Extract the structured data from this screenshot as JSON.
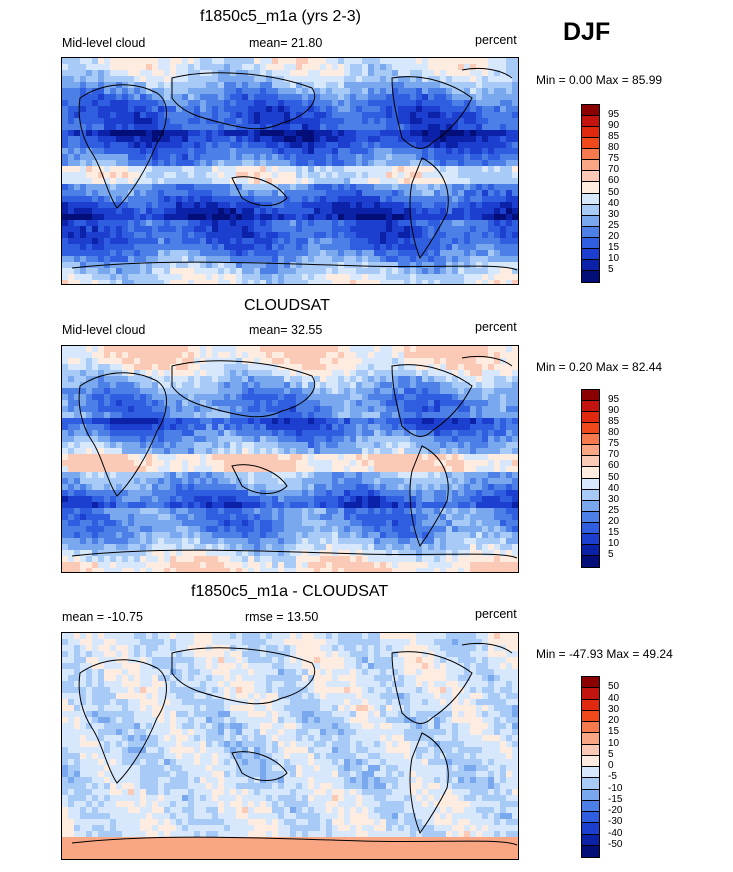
{
  "season": "DJF",
  "panels": [
    {
      "title": "f1850c5_m1a (yrs 2-3)",
      "left_label": "Mid-level cloud",
      "center_label": "mean=  21.80",
      "right_label": "percent",
      "minmax": "Min =   0.00 Max =  85.99",
      "kind": "abs"
    },
    {
      "title": "CLOUDSAT",
      "left_label": "Mid-level cloud",
      "center_label": "mean=  32.55",
      "right_label": "percent",
      "minmax": "Min =   0.20 Max =  82.44",
      "kind": "abs"
    },
    {
      "title": "f1850c5_m1a - CLOUDSAT",
      "left_label": "mean = -10.75",
      "center_label": "rmse =  13.50",
      "right_label": "percent",
      "minmax": "Min = -47.93 Max =  49.24",
      "kind": "diff"
    }
  ],
  "chart_data": [
    {
      "type": "heatmap",
      "title": "f1850c5_m1a (yrs 2-3)",
      "variable": "Mid-level cloud",
      "units": "percent",
      "mean": 21.8,
      "min": 0.0,
      "max": 85.99,
      "colorbar_levels": [
        5,
        10,
        15,
        20,
        25,
        30,
        40,
        50,
        60,
        70,
        75,
        80,
        85,
        90,
        95
      ],
      "colorbar_labels": [
        "95",
        "90",
        "85",
        "80",
        "75",
        "70",
        "60",
        "50",
        "40",
        "30",
        "25",
        "20",
        "15",
        "10",
        "5"
      ]
    },
    {
      "type": "heatmap",
      "title": "CLOUDSAT",
      "variable": "Mid-level cloud",
      "units": "percent",
      "mean": 32.55,
      "min": 0.2,
      "max": 82.44,
      "colorbar_levels": [
        5,
        10,
        15,
        20,
        25,
        30,
        40,
        50,
        60,
        70,
        75,
        80,
        85,
        90,
        95
      ],
      "colorbar_labels": [
        "95",
        "90",
        "85",
        "80",
        "75",
        "70",
        "60",
        "50",
        "40",
        "30",
        "25",
        "20",
        "15",
        "10",
        "5"
      ]
    },
    {
      "type": "heatmap",
      "title": "f1850c5_m1a - CLOUDSAT",
      "units": "percent",
      "mean": -10.75,
      "rmse": 13.5,
      "min": -47.93,
      "max": 49.24,
      "colorbar_levels": [
        -50,
        -40,
        -30,
        -20,
        -15,
        -10,
        -5,
        0,
        5,
        10,
        15,
        20,
        30,
        40,
        50
      ],
      "colorbar_labels": [
        "50",
        "40",
        "30",
        "20",
        "15",
        "10",
        "5",
        "0",
        "-5",
        "-10",
        "-15",
        "-20",
        "-30",
        "-40",
        "-50"
      ]
    }
  ],
  "colorbar_colors": [
    "#8b0000",
    "#c3140f",
    "#e0290f",
    "#f04a1c",
    "#f77a4f",
    "#f9a685",
    "#fbcab6",
    "#fdecdf",
    "#d8e8fc",
    "#a8caf6",
    "#7aa8ef",
    "#4d80e6",
    "#2f5fe0",
    "#1c3fd0",
    "#0b22a8",
    "#040e78"
  ]
}
